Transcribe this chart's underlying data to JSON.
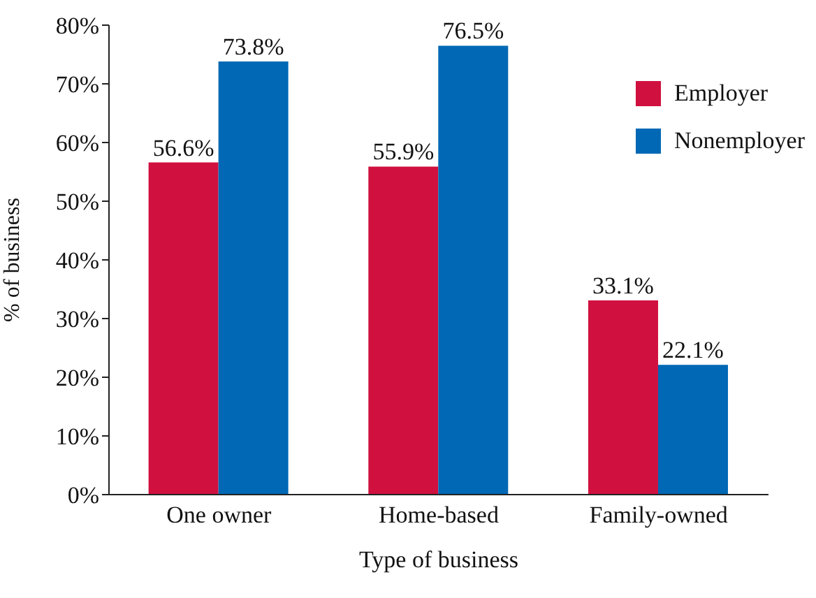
{
  "chart_data": {
    "type": "bar",
    "categories": [
      "One owner",
      "Home-based",
      "Family-owned"
    ],
    "xlabel": "Type of business",
    "ylabel": "% of business",
    "series": [
      {
        "name": "Employer",
        "color": "#d0103f",
        "values": [
          56.6,
          55.9,
          33.1
        ],
        "value_labels": [
          "56.6%",
          "55.9%",
          "33.1%"
        ]
      },
      {
        "name": "Nonemployer",
        "color": "#0068b5",
        "values": [
          73.8,
          76.5,
          22.1
        ],
        "value_labels": [
          "73.8%",
          "76.5%",
          "22.1%"
        ]
      }
    ],
    "ylim": [
      0,
      80
    ],
    "yticks": [
      {
        "value": 0,
        "label": "0%"
      },
      {
        "value": 10,
        "label": "10%"
      },
      {
        "value": 20,
        "label": "20%"
      },
      {
        "value": 30,
        "label": "30%"
      },
      {
        "value": 40,
        "label": "40%"
      },
      {
        "value": 50,
        "label": "50%"
      },
      {
        "value": 60,
        "label": "60%"
      },
      {
        "value": 70,
        "label": "70%"
      },
      {
        "value": 80,
        "label": "80%"
      }
    ],
    "grid": false,
    "legend": "top right"
  }
}
